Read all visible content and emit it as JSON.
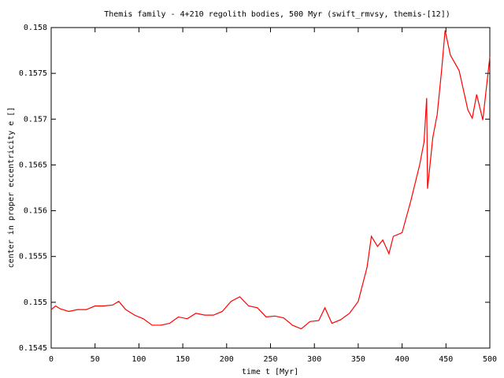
{
  "chart_data": {
    "type": "line",
    "title": "Themis family - 4+210 regolith bodies, 500 Myr (swift_rmvsy, themis-[12])",
    "xlabel": "time t [Myr]",
    "ylabel": "center in proper eccentricity e []",
    "xlim": [
      0,
      500
    ],
    "ylim": [
      0.1545,
      0.158
    ],
    "xticks": [
      0,
      50,
      100,
      150,
      200,
      250,
      300,
      350,
      400,
      450,
      500
    ],
    "yticks": [
      0.1545,
      0.155,
      0.1555,
      0.156,
      0.1565,
      0.157,
      0.1575,
      0.158
    ],
    "grid": false,
    "series": [
      {
        "color": "#ff0000",
        "x": [
          0,
          5,
          10,
          20,
          30,
          40,
          50,
          60,
          70,
          77,
          85,
          95,
          105,
          115,
          125,
          135,
          145,
          155,
          165,
          175,
          185,
          195,
          205,
          215,
          225,
          235,
          245,
          255,
          265,
          275,
          285,
          295,
          305,
          312,
          320,
          330,
          340,
          350,
          360,
          365,
          372,
          378,
          385,
          390,
          400,
          410,
          420,
          425,
          428,
          429,
          435,
          440,
          445,
          449,
          455,
          465,
          475,
          480,
          485,
          492,
          500
        ],
        "values": [
          0.15492,
          0.15496,
          0.15493,
          0.1549,
          0.15492,
          0.15492,
          0.15496,
          0.15496,
          0.15497,
          0.15501,
          0.15492,
          0.15486,
          0.15482,
          0.15475,
          0.15475,
          0.15477,
          0.15484,
          0.15482,
          0.15488,
          0.15486,
          0.15486,
          0.1549,
          0.15501,
          0.15506,
          0.15496,
          0.15494,
          0.15484,
          0.15485,
          0.15483,
          0.15475,
          0.15471,
          0.15479,
          0.1548,
          0.15494,
          0.15477,
          0.15481,
          0.15488,
          0.15501,
          0.15538,
          0.15572,
          0.15561,
          0.15568,
          0.15553,
          0.15572,
          0.15576,
          0.15611,
          0.1565,
          0.15675,
          0.15723,
          0.15624,
          0.1568,
          0.15705,
          0.15753,
          0.15797,
          0.1577,
          0.15753,
          0.1571,
          0.15701,
          0.15727,
          0.15699,
          0.15768
        ]
      }
    ]
  }
}
